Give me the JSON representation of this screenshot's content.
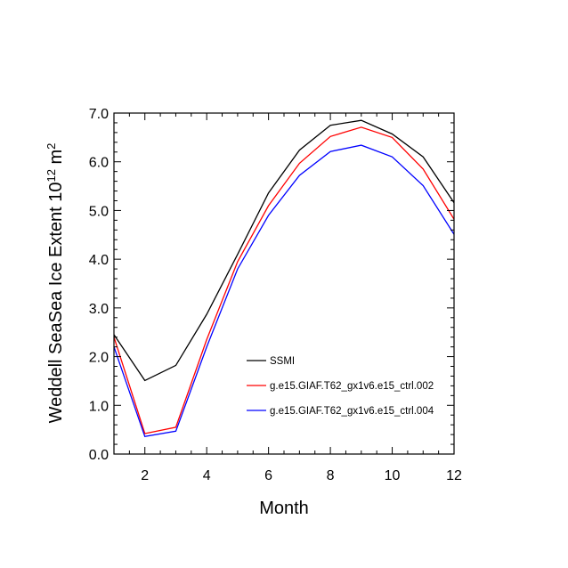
{
  "chart_data": {
    "type": "line",
    "xlabel": "Month",
    "ylabel_parts": {
      "main": "Weddell SeaSea Ice Extent 10",
      "sup1": "12",
      "unit": " m",
      "sup2": "2"
    },
    "xlim": [
      1,
      12
    ],
    "ylim": [
      0,
      7
    ],
    "xticks": [
      2,
      4,
      6,
      8,
      10,
      12
    ],
    "xtick_labels": [
      "2",
      "4",
      "6",
      "8",
      "10",
      "12"
    ],
    "yticks": [
      0,
      1,
      2,
      3,
      4,
      5,
      6,
      7
    ],
    "ytick_labels": [
      "0.0",
      "1.0",
      "2.0",
      "3.0",
      "4.0",
      "5.0",
      "6.0",
      "7.0"
    ],
    "grid": false,
    "legend_placement": "lower-right",
    "x": [
      1,
      2,
      3,
      4,
      5,
      6,
      7,
      8,
      9,
      10,
      11,
      12
    ],
    "series": [
      {
        "name": "SSMI",
        "color": "#000000",
        "values": [
          2.45,
          1.51,
          1.82,
          2.87,
          4.1,
          5.36,
          6.24,
          6.75,
          6.85,
          6.57,
          6.1,
          5.16
        ]
      },
      {
        "name": "g.e15.GIAF.T62_gx1v6.e15_ctrl.002",
        "color": "#ff0000",
        "values": [
          2.4,
          0.42,
          0.55,
          2.35,
          3.95,
          5.1,
          5.97,
          6.52,
          6.71,
          6.5,
          5.85,
          4.82
        ]
      },
      {
        "name": "g.e15.GIAF.T62_gx1v6.e15_ctrl.004",
        "color": "#0000ff",
        "values": [
          2.2,
          0.36,
          0.47,
          2.2,
          3.8,
          4.9,
          5.72,
          6.21,
          6.34,
          6.1,
          5.51,
          4.51
        ]
      }
    ]
  }
}
